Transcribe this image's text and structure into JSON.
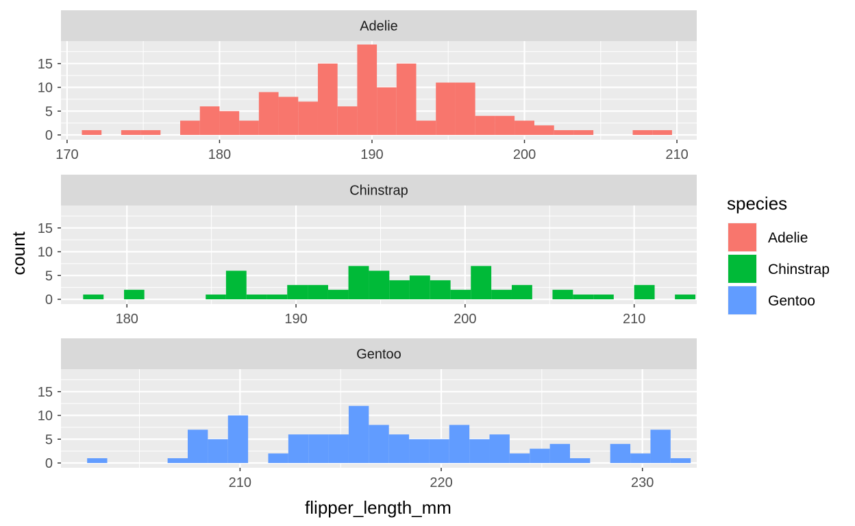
{
  "chart_data": {
    "type": "bar",
    "subtype": "faceted-histogram",
    "xlabel": "flipper_length_mm",
    "ylabel": "count",
    "ylim": [
      0,
      19
    ],
    "yticks": [
      0,
      5,
      10,
      15
    ],
    "grid": true,
    "legend_position": "right",
    "legend": {
      "title": "species",
      "entries": [
        {
          "label": "Adelie",
          "color": "#F8766D"
        },
        {
          "label": "Chinstrap",
          "color": "#00BA38"
        },
        {
          "label": "Gentoo",
          "color": "#619CFF"
        }
      ]
    },
    "facets": [
      {
        "label": "Adelie",
        "color": "#F8766D",
        "xlim": [
          169.6,
          211.3
        ],
        "xticks": [
          170,
          180,
          190,
          200,
          210
        ],
        "bins": [
          {
            "x0": 170.97,
            "x1": 172.26,
            "count": 1
          },
          {
            "x0": 172.26,
            "x1": 173.55,
            "count": 0
          },
          {
            "x0": 173.55,
            "x1": 174.84,
            "count": 1
          },
          {
            "x0": 174.84,
            "x1": 176.13,
            "count": 1
          },
          {
            "x0": 176.13,
            "x1": 177.42,
            "count": 0
          },
          {
            "x0": 177.42,
            "x1": 178.71,
            "count": 3
          },
          {
            "x0": 178.71,
            "x1": 180.0,
            "count": 6
          },
          {
            "x0": 180.0,
            "x1": 181.29,
            "count": 5
          },
          {
            "x0": 181.29,
            "x1": 182.58,
            "count": 3
          },
          {
            "x0": 182.58,
            "x1": 183.87,
            "count": 9
          },
          {
            "x0": 183.87,
            "x1": 185.16,
            "count": 8
          },
          {
            "x0": 185.16,
            "x1": 186.45,
            "count": 7
          },
          {
            "x0": 186.45,
            "x1": 187.74,
            "count": 15
          },
          {
            "x0": 187.74,
            "x1": 189.03,
            "count": 6
          },
          {
            "x0": 189.03,
            "x1": 190.32,
            "count": 19
          },
          {
            "x0": 190.32,
            "x1": 191.61,
            "count": 10
          },
          {
            "x0": 191.61,
            "x1": 192.9,
            "count": 15
          },
          {
            "x0": 192.9,
            "x1": 194.19,
            "count": 3
          },
          {
            "x0": 194.19,
            "x1": 195.48,
            "count": 11
          },
          {
            "x0": 195.48,
            "x1": 196.77,
            "count": 11
          },
          {
            "x0": 196.77,
            "x1": 198.06,
            "count": 4
          },
          {
            "x0": 198.06,
            "x1": 199.35,
            "count": 4
          },
          {
            "x0": 199.35,
            "x1": 200.65,
            "count": 3
          },
          {
            "x0": 200.65,
            "x1": 201.94,
            "count": 2
          },
          {
            "x0": 201.94,
            "x1": 203.23,
            "count": 1
          },
          {
            "x0": 203.23,
            "x1": 204.52,
            "count": 1
          },
          {
            "x0": 204.52,
            "x1": 205.81,
            "count": 0
          },
          {
            "x0": 205.81,
            "x1": 207.1,
            "count": 0
          },
          {
            "x0": 207.1,
            "x1": 208.39,
            "count": 1
          },
          {
            "x0": 208.39,
            "x1": 209.68,
            "count": 1
          }
        ]
      },
      {
        "label": "Chinstrap",
        "color": "#00BA38",
        "xlim": [
          176.1,
          213.7
        ],
        "xticks": [
          180,
          190,
          200,
          210
        ],
        "bins": [
          {
            "x0": 177.41,
            "x1": 178.62,
            "count": 1
          },
          {
            "x0": 178.62,
            "x1": 179.83,
            "count": 0
          },
          {
            "x0": 179.83,
            "x1": 181.03,
            "count": 2
          },
          {
            "x0": 181.03,
            "x1": 182.24,
            "count": 0
          },
          {
            "x0": 182.24,
            "x1": 183.45,
            "count": 0
          },
          {
            "x0": 183.45,
            "x1": 184.66,
            "count": 0
          },
          {
            "x0": 184.66,
            "x1": 185.86,
            "count": 1
          },
          {
            "x0": 185.86,
            "x1": 187.07,
            "count": 6
          },
          {
            "x0": 187.07,
            "x1": 188.28,
            "count": 1
          },
          {
            "x0": 188.28,
            "x1": 189.48,
            "count": 1
          },
          {
            "x0": 189.48,
            "x1": 190.69,
            "count": 3
          },
          {
            "x0": 190.69,
            "x1": 191.9,
            "count": 3
          },
          {
            "x0": 191.9,
            "x1": 193.1,
            "count": 2
          },
          {
            "x0": 193.1,
            "x1": 194.31,
            "count": 7
          },
          {
            "x0": 194.31,
            "x1": 195.52,
            "count": 6
          },
          {
            "x0": 195.52,
            "x1": 196.72,
            "count": 4
          },
          {
            "x0": 196.72,
            "x1": 197.93,
            "count": 5
          },
          {
            "x0": 197.93,
            "x1": 199.14,
            "count": 4
          },
          {
            "x0": 199.14,
            "x1": 200.34,
            "count": 2
          },
          {
            "x0": 200.34,
            "x1": 201.55,
            "count": 7
          },
          {
            "x0": 201.55,
            "x1": 202.76,
            "count": 2
          },
          {
            "x0": 202.76,
            "x1": 203.97,
            "count": 3
          },
          {
            "x0": 203.97,
            "x1": 205.17,
            "count": 0
          },
          {
            "x0": 205.17,
            "x1": 206.38,
            "count": 2
          },
          {
            "x0": 206.38,
            "x1": 207.59,
            "count": 1
          },
          {
            "x0": 207.59,
            "x1": 208.79,
            "count": 1
          },
          {
            "x0": 208.79,
            "x1": 210.0,
            "count": 0
          },
          {
            "x0": 210.0,
            "x1": 211.21,
            "count": 3
          },
          {
            "x0": 211.21,
            "x1": 212.41,
            "count": 0
          },
          {
            "x0": 212.41,
            "x1": 213.62,
            "count": 1
          }
        ]
      },
      {
        "label": "Gentoo",
        "color": "#619CFF",
        "xlim": [
          201.1,
          232.7
        ],
        "xticks": [
          210,
          220,
          230
        ],
        "bins": [
          {
            "x0": 202.4,
            "x1": 203.4,
            "count": 1
          },
          {
            "x0": 203.4,
            "x1": 204.4,
            "count": 0
          },
          {
            "x0": 204.4,
            "x1": 205.4,
            "count": 0
          },
          {
            "x0": 205.4,
            "x1": 206.4,
            "count": 0
          },
          {
            "x0": 206.4,
            "x1": 207.4,
            "count": 1
          },
          {
            "x0": 207.4,
            "x1": 208.4,
            "count": 7
          },
          {
            "x0": 208.4,
            "x1": 209.4,
            "count": 5
          },
          {
            "x0": 209.4,
            "x1": 210.4,
            "count": 10
          },
          {
            "x0": 210.4,
            "x1": 211.4,
            "count": 0
          },
          {
            "x0": 211.4,
            "x1": 212.4,
            "count": 2
          },
          {
            "x0": 212.4,
            "x1": 213.4,
            "count": 6
          },
          {
            "x0": 213.4,
            "x1": 214.4,
            "count": 6
          },
          {
            "x0": 214.4,
            "x1": 215.4,
            "count": 6
          },
          {
            "x0": 215.4,
            "x1": 216.4,
            "count": 12
          },
          {
            "x0": 216.4,
            "x1": 217.4,
            "count": 8
          },
          {
            "x0": 217.4,
            "x1": 218.4,
            "count": 6
          },
          {
            "x0": 218.4,
            "x1": 219.4,
            "count": 5
          },
          {
            "x0": 219.4,
            "x1": 220.4,
            "count": 5
          },
          {
            "x0": 220.4,
            "x1": 221.4,
            "count": 8
          },
          {
            "x0": 221.4,
            "x1": 222.4,
            "count": 5
          },
          {
            "x0": 222.4,
            "x1": 223.4,
            "count": 6
          },
          {
            "x0": 223.4,
            "x1": 224.4,
            "count": 2
          },
          {
            "x0": 224.4,
            "x1": 225.4,
            "count": 3
          },
          {
            "x0": 225.4,
            "x1": 226.4,
            "count": 4
          },
          {
            "x0": 226.4,
            "x1": 227.4,
            "count": 1
          },
          {
            "x0": 227.4,
            "x1": 228.4,
            "count": 0
          },
          {
            "x0": 228.4,
            "x1": 229.4,
            "count": 4
          },
          {
            "x0": 229.4,
            "x1": 230.4,
            "count": 2
          },
          {
            "x0": 230.4,
            "x1": 231.4,
            "count": 7
          },
          {
            "x0": 231.4,
            "x1": 232.4,
            "count": 1
          }
        ]
      }
    ]
  }
}
